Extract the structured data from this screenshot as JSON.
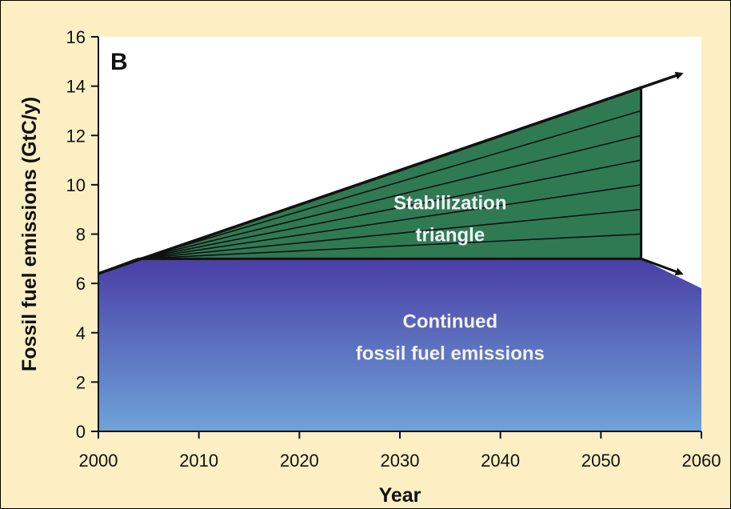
{
  "chart_data": {
    "type": "area",
    "panel_label": "B",
    "xlabel": "Year",
    "ylabel": "Fossil fuel emissions (GtC/y)",
    "xlim": [
      2000,
      2060
    ],
    "ylim": [
      0,
      16
    ],
    "x_ticks": [
      2000,
      2010,
      2020,
      2030,
      2040,
      2050,
      2060
    ],
    "y_ticks": [
      0,
      2,
      4,
      6,
      8,
      10,
      12,
      14,
      16
    ],
    "base": {
      "label_line1": "Continued",
      "label_line2": "fossil fuel emissions",
      "x": [
        2000,
        2004,
        2054,
        2060
      ],
      "y": [
        6.4,
        7.0,
        7.0,
        5.8
      ],
      "colors": [
        "#4a3ea6",
        "#6fa3d8"
      ]
    },
    "triangle": {
      "label_line1": "Stabilization",
      "label_line2": "triangle",
      "x": [
        2004,
        2054
      ],
      "y_bottom": 7.0,
      "y_top_end": 14.0,
      "wedges": 7,
      "color": "#2f7a52"
    },
    "bau_arrow": {
      "x": [
        2000,
        2058
      ],
      "y": [
        6.4,
        14.5
      ]
    },
    "flat_arrow": {
      "x": [
        2054,
        2058
      ],
      "y": [
        7.0,
        6.4
      ]
    }
  }
}
